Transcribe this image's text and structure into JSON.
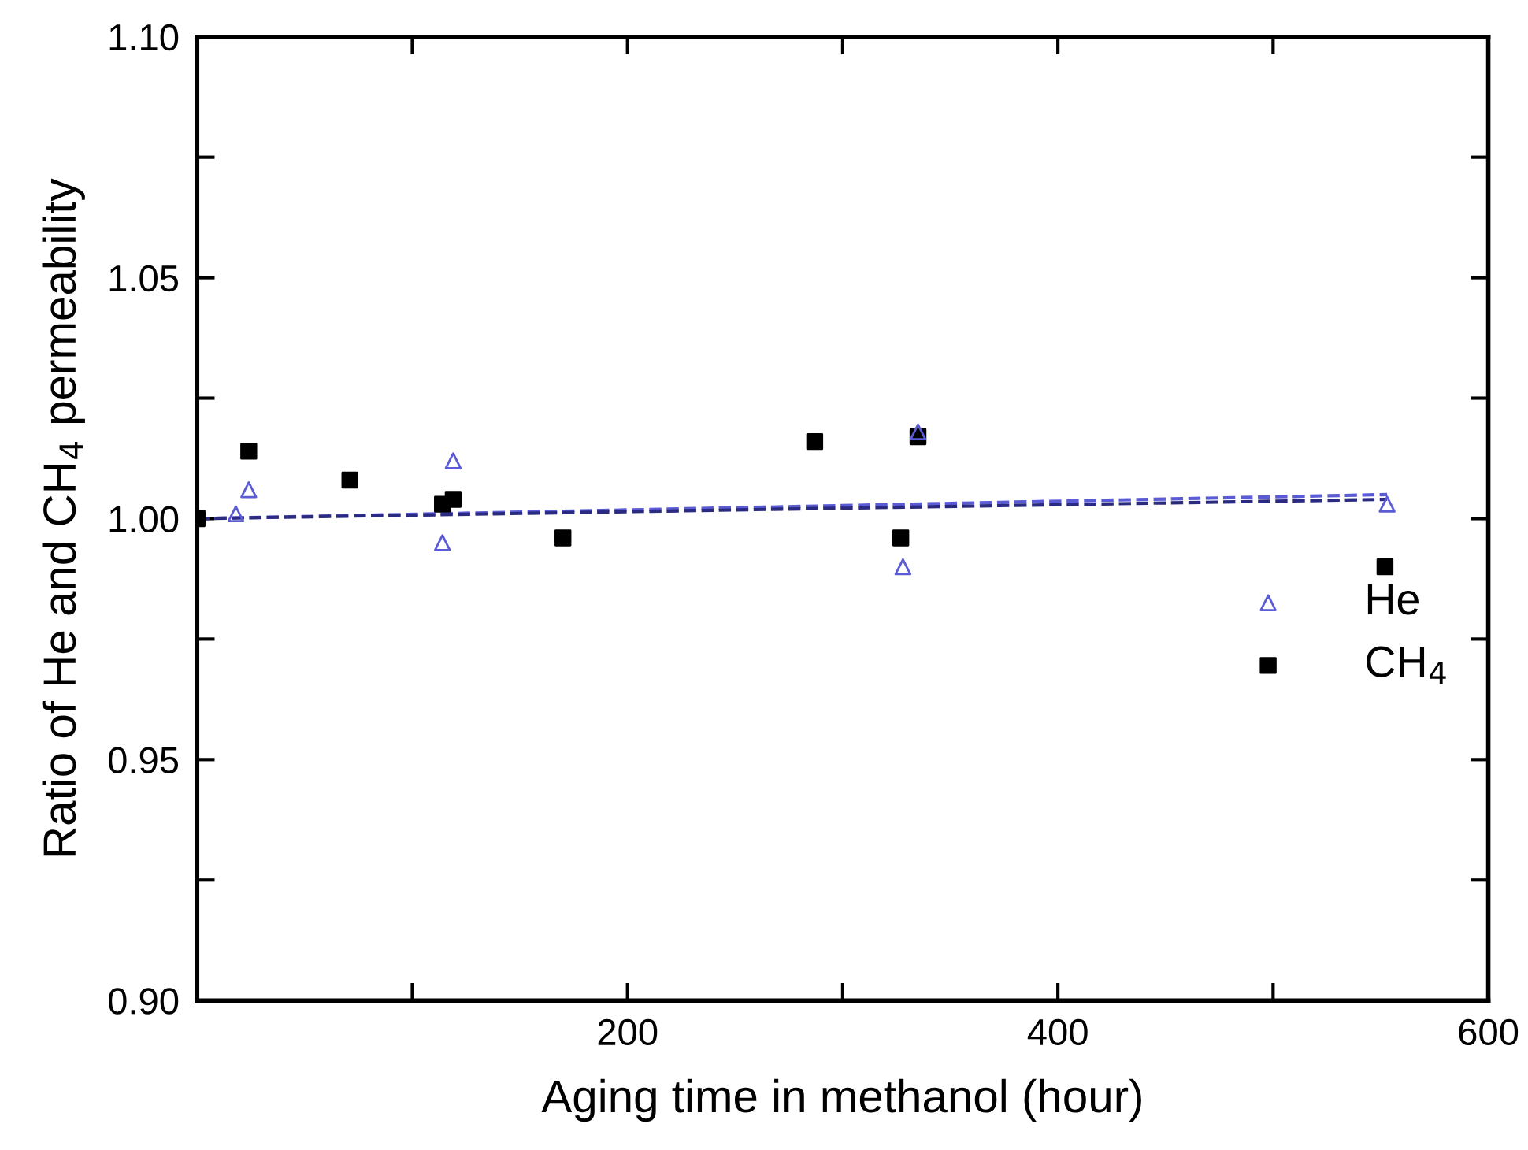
{
  "chart_data": {
    "type": "scatter",
    "xlabel": "Aging time in methanol (hour)",
    "ylabel": "Ratio of He and CH$_{4}$ permeability",
    "xlim": [
      0,
      600
    ],
    "ylim": [
      0.9,
      1.1
    ],
    "xticks": [
      {
        "value": 100,
        "label": null
      },
      200,
      {
        "value": 300,
        "label": null
      },
      400,
      {
        "value": 500,
        "label": null
      },
      600
    ],
    "yticks": [
      {
        "value": 0.9,
        "label": "0.90"
      },
      {
        "value": 0.925,
        "label": null
      },
      0.95,
      {
        "value": 0.975,
        "label": null
      },
      {
        "value": 1.0,
        "label": "1.00"
      },
      {
        "value": 1.025,
        "label": null
      },
      1.05,
      {
        "value": 1.075,
        "label": null
      },
      {
        "value": 1.1,
        "label": "1.10"
      }
    ],
    "legend": "center right",
    "grid": false,
    "series": [
      {
        "name": "He",
        "marker": "triangle",
        "color": "#5b5bd6",
        "x": [
          18,
          24,
          114,
          119,
          328,
          335,
          553
        ],
        "values": [
          1.001,
          1.006,
          0.995,
          1.012,
          0.99,
          1.018,
          1.003
        ]
      },
      {
        "name": "CH$_{4}$",
        "marker": "square",
        "color": "#000000",
        "x": [
          0,
          24,
          71,
          114,
          119,
          170,
          287,
          327,
          335,
          552
        ],
        "values": [
          1.0,
          1.014,
          1.008,
          1.003,
          1.004,
          0.996,
          1.016,
          0.996,
          1.017,
          0.99
        ]
      },
      {
        "type": "line",
        "line_style": "dashed",
        "color": "#5b5bd6",
        "x": [
          0,
          553
        ],
        "values": [
          1.0,
          1.005
        ]
      },
      {
        "type": "line",
        "line_style": "dashed",
        "color": "#2a2a80",
        "x": [
          0,
          553
        ],
        "values": [
          1.0,
          1.004
        ]
      }
    ]
  }
}
